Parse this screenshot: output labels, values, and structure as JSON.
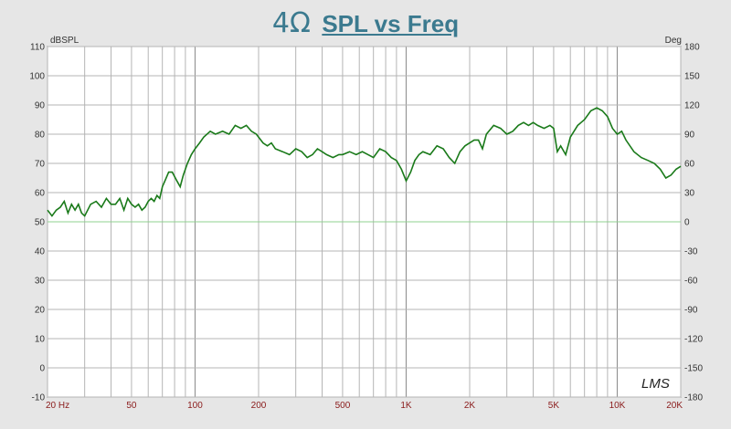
{
  "chart_data": {
    "type": "line",
    "title_impedance": "4Ω",
    "title_text": "SPL vs Freq",
    "ylabel_left": "dBSPL",
    "ylabel_right": "Deg",
    "x_scale": "log",
    "xlim": [
      20,
      20000
    ],
    "ylim": [
      -10,
      110
    ],
    "ylim_right": [
      -180,
      180
    ],
    "x_tick_labels": [
      {
        "value": 20,
        "label": "20  Hz"
      },
      {
        "value": 50,
        "label": "50"
      },
      {
        "value": 100,
        "label": "100"
      },
      {
        "value": 200,
        "label": "200"
      },
      {
        "value": 500,
        "label": "500"
      },
      {
        "value": 1000,
        "label": "1K"
      },
      {
        "value": 2000,
        "label": "2K"
      },
      {
        "value": 5000,
        "label": "5K"
      },
      {
        "value": 10000,
        "label": "10K"
      },
      {
        "value": 20000,
        "label": "20K"
      }
    ],
    "y_ticks_left": [
      "110",
      "100",
      "90",
      "80",
      "70",
      "60",
      "50",
      "40",
      "30",
      "20",
      "10",
      "0",
      "-10"
    ],
    "y_ticks_right": [
      "180",
      "150",
      "120",
      "90",
      "60",
      "30",
      "0",
      "-30",
      "-60",
      "-90",
      "-120",
      "-150",
      "-180"
    ],
    "grid": true,
    "zero_phase_line_color": "#8fd08f",
    "spl_line_color": "#1a7a1a",
    "watermark": "LMS",
    "series": [
      {
        "x": [
          20,
          21,
          22,
          23,
          24,
          25,
          26,
          27,
          28,
          29,
          30,
          32,
          34,
          36,
          38,
          40,
          42,
          44,
          46,
          48,
          50,
          52,
          54,
          56,
          58,
          60,
          62,
          64,
          66,
          68,
          70,
          72,
          75,
          78,
          82,
          85,
          88,
          92,
          96,
          100,
          105,
          110,
          118,
          125,
          135,
          145,
          155,
          165,
          175,
          185,
          195,
          200,
          210,
          220,
          230,
          240,
          260,
          280,
          300,
          320,
          340,
          360,
          380,
          400,
          420,
          450,
          480,
          500,
          540,
          580,
          620,
          660,
          700,
          750,
          800,
          850,
          900,
          950,
          1000,
          1050,
          1100,
          1150,
          1200,
          1300,
          1400,
          1500,
          1600,
          1700,
          1800,
          1900,
          2000,
          2100,
          2200,
          2300,
          2400,
          2600,
          2800,
          3000,
          3200,
          3400,
          3600,
          3800,
          4000,
          4200,
          4500,
          4800,
          5000,
          5200,
          5400,
          5700,
          6000,
          6500,
          7000,
          7500,
          8000,
          8500,
          9000,
          9500,
          10000,
          10500,
          11000,
          12000,
          13000,
          14000,
          15000,
          16000,
          17000,
          18000,
          19000,
          20000
        ],
        "y": [
          54,
          52,
          54,
          55,
          57,
          53,
          56,
          54,
          56,
          53,
          52,
          56,
          57,
          55,
          58,
          56,
          56,
          58,
          54,
          58,
          56,
          55,
          56,
          54,
          55,
          57,
          58,
          57,
          59,
          58,
          62,
          64,
          67,
          67,
          64,
          62,
          66,
          70,
          73,
          75,
          77,
          79,
          81,
          80,
          81,
          80,
          83,
          82,
          83,
          81,
          80,
          79,
          77,
          76,
          77,
          75,
          74,
          73,
          75,
          74,
          72,
          73,
          75,
          74,
          73,
          72,
          73,
          73,
          74,
          73,
          74,
          73,
          72,
          75,
          74,
          72,
          71,
          68,
          64,
          67,
          71,
          73,
          74,
          73,
          76,
          75,
          72,
          70,
          74,
          76,
          77,
          78,
          78,
          75,
          80,
          83,
          82,
          80,
          81,
          83,
          84,
          83,
          84,
          83,
          82,
          83,
          82,
          74,
          76,
          73,
          79,
          83,
          85,
          88,
          89,
          88,
          86,
          82,
          80,
          81,
          78,
          74,
          72,
          71,
          70,
          68,
          65,
          66,
          68,
          69
        ]
      }
    ]
  }
}
